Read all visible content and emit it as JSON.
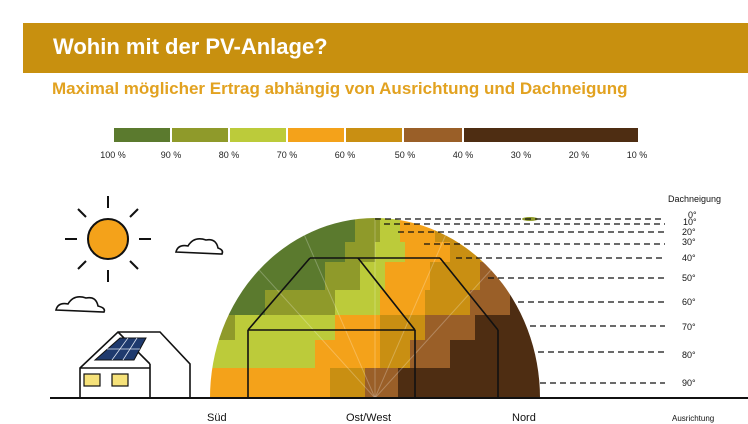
{
  "header": {
    "title": "Wohin mit der PV-Anlage?",
    "subtitle": "Maximal möglicher Ertrag abhängig von Ausrichtung und Dachneigung"
  },
  "legend": {
    "colors": [
      "#5b7a2e",
      "#8f9a2a",
      "#bccb3a",
      "#f4a21a",
      "#c98f12",
      "#9a5f28",
      "#4e2d12"
    ],
    "labels": [
      "100 %",
      "90 %",
      "80 %",
      "70 %",
      "60 %",
      "50 %",
      "40 %",
      "30 %",
      "20 %",
      "10 %"
    ]
  },
  "tilt_axis": {
    "title": "Dachneigung",
    "labels": [
      "0°",
      "10°",
      "20°",
      "30°",
      "40°",
      "50°",
      "60°",
      "70°",
      "80°",
      "90°"
    ]
  },
  "direction_axis": {
    "title": "Ausrichtung",
    "labels": [
      "Süd",
      "Ost/West",
      "Nord"
    ]
  }
}
